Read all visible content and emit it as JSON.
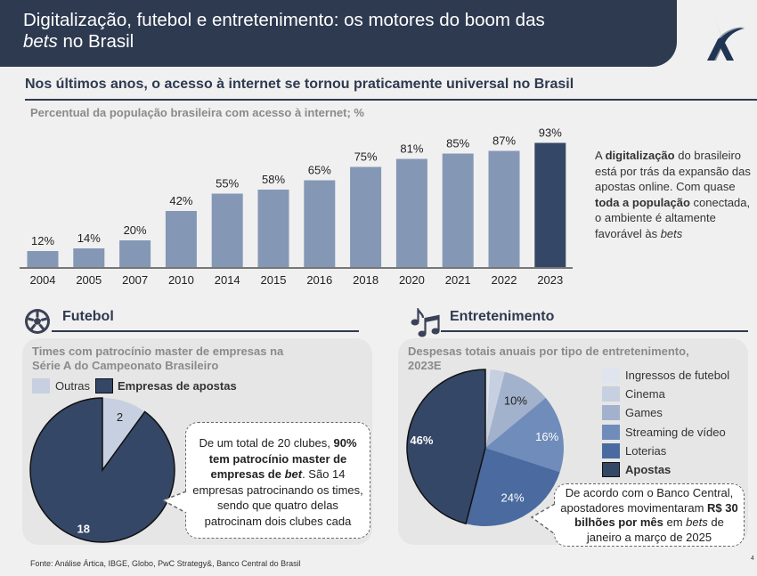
{
  "header": {
    "title_line1": "Digitalização, futebol e entretenimento: os motores do boom das",
    "title_line2_italic": "bets",
    "title_line2_rest": " no Brasil",
    "logo_icon": "artica-logo"
  },
  "section1": {
    "headline": "Nos últimos anos, o acesso à internet se tornou praticamente universal no Brasil",
    "chart_caption": "Percentual da população brasileira com acesso à internet; %",
    "side_text": {
      "p1": "A ",
      "b1": "digitalização",
      "p2": " do brasileiro está por trás da expansão das apostas online. Com quase ",
      "b2": "toda a população",
      "p3": " conectada, o ambiente é altamente favorável às ",
      "i1": "bets"
    }
  },
  "futebol": {
    "title": "Futebol",
    "icon": "soccer-ball-icon",
    "panel_title_line1": "Times com patrocínio master de empresas na",
    "panel_title_line2": "Série A do Campeonato Brasileiro",
    "legend": [
      {
        "label": "Outras",
        "color": "#c7d0e0",
        "bold": false
      },
      {
        "label": "Empresas de apostas",
        "color": "#344766",
        "bold": true
      }
    ],
    "callout": {
      "t1": "De um total de 20 clubes, ",
      "b1": "90% tem patrocínio master de empresas de ",
      "bi1": "bet",
      "t2": ". São 14 empresas patrocinando os times, sendo que quatro delas patrocinam dois clubes cada"
    }
  },
  "entretenimento": {
    "title": "Entretenimento",
    "icon": "music-notes-icon",
    "panel_title_line1": "Despesas totais anuais por tipo de entretenimento,",
    "panel_title_line2": "2023E",
    "callout": {
      "t1": "De acordo com o Banco Central, apostadores movimentaram ",
      "b1": "R$ 30 bilhões por mês",
      "t2": " em ",
      "i1": "bets",
      "t3": " de janeiro a março de 2025"
    }
  },
  "footer": {
    "source": "Fonte: Análise Ártica, IBGE, Globo, PwC Strategy&, Banco Central do Brasil",
    "page_number": "4"
  },
  "chart_data": [
    {
      "type": "bar",
      "title": "Percentual da população brasileira com acesso à internet; %",
      "categories": [
        "2004",
        "2005",
        "2007",
        "2010",
        "2014",
        "2015",
        "2016",
        "2018",
        "2020",
        "2021",
        "2022",
        "2023"
      ],
      "values": [
        12,
        14,
        20,
        42,
        55,
        58,
        65,
        75,
        81,
        85,
        87,
        93
      ],
      "value_suffix": "%",
      "highlight_index": 11,
      "colors": {
        "default": "#8497b5",
        "highlight": "#344766"
      },
      "xlabel": "",
      "ylabel": "",
      "ylim": [
        0,
        100
      ],
      "grid": false
    },
    {
      "type": "pie",
      "title": "Times com patrocínio master de empresas na Série A do Campeonato Brasileiro",
      "labels": [
        "Outras",
        "Empresas de apostas"
      ],
      "values": [
        2,
        18
      ],
      "data_labels": [
        "2",
        "18"
      ],
      "colors": [
        "#c7d0e0",
        "#344766"
      ],
      "legend": "top"
    },
    {
      "type": "pie",
      "title": "Despesas totais anuais por tipo de entretenimento, 2023E",
      "labels": [
        "Ingressos de futebol",
        "Cinema",
        "Games",
        "Streaming de vídeo",
        "Loterias",
        "Apostas"
      ],
      "values": [
        1,
        3,
        10,
        16,
        24,
        46
      ],
      "data_labels": [
        "",
        "",
        "10%",
        "16%",
        "24%",
        "46%"
      ],
      "colors": [
        "#dfe4ee",
        "#c7d0e0",
        "#a2b1cc",
        "#6f8cba",
        "#4a6aa0",
        "#344766"
      ],
      "legend": "right"
    }
  ]
}
